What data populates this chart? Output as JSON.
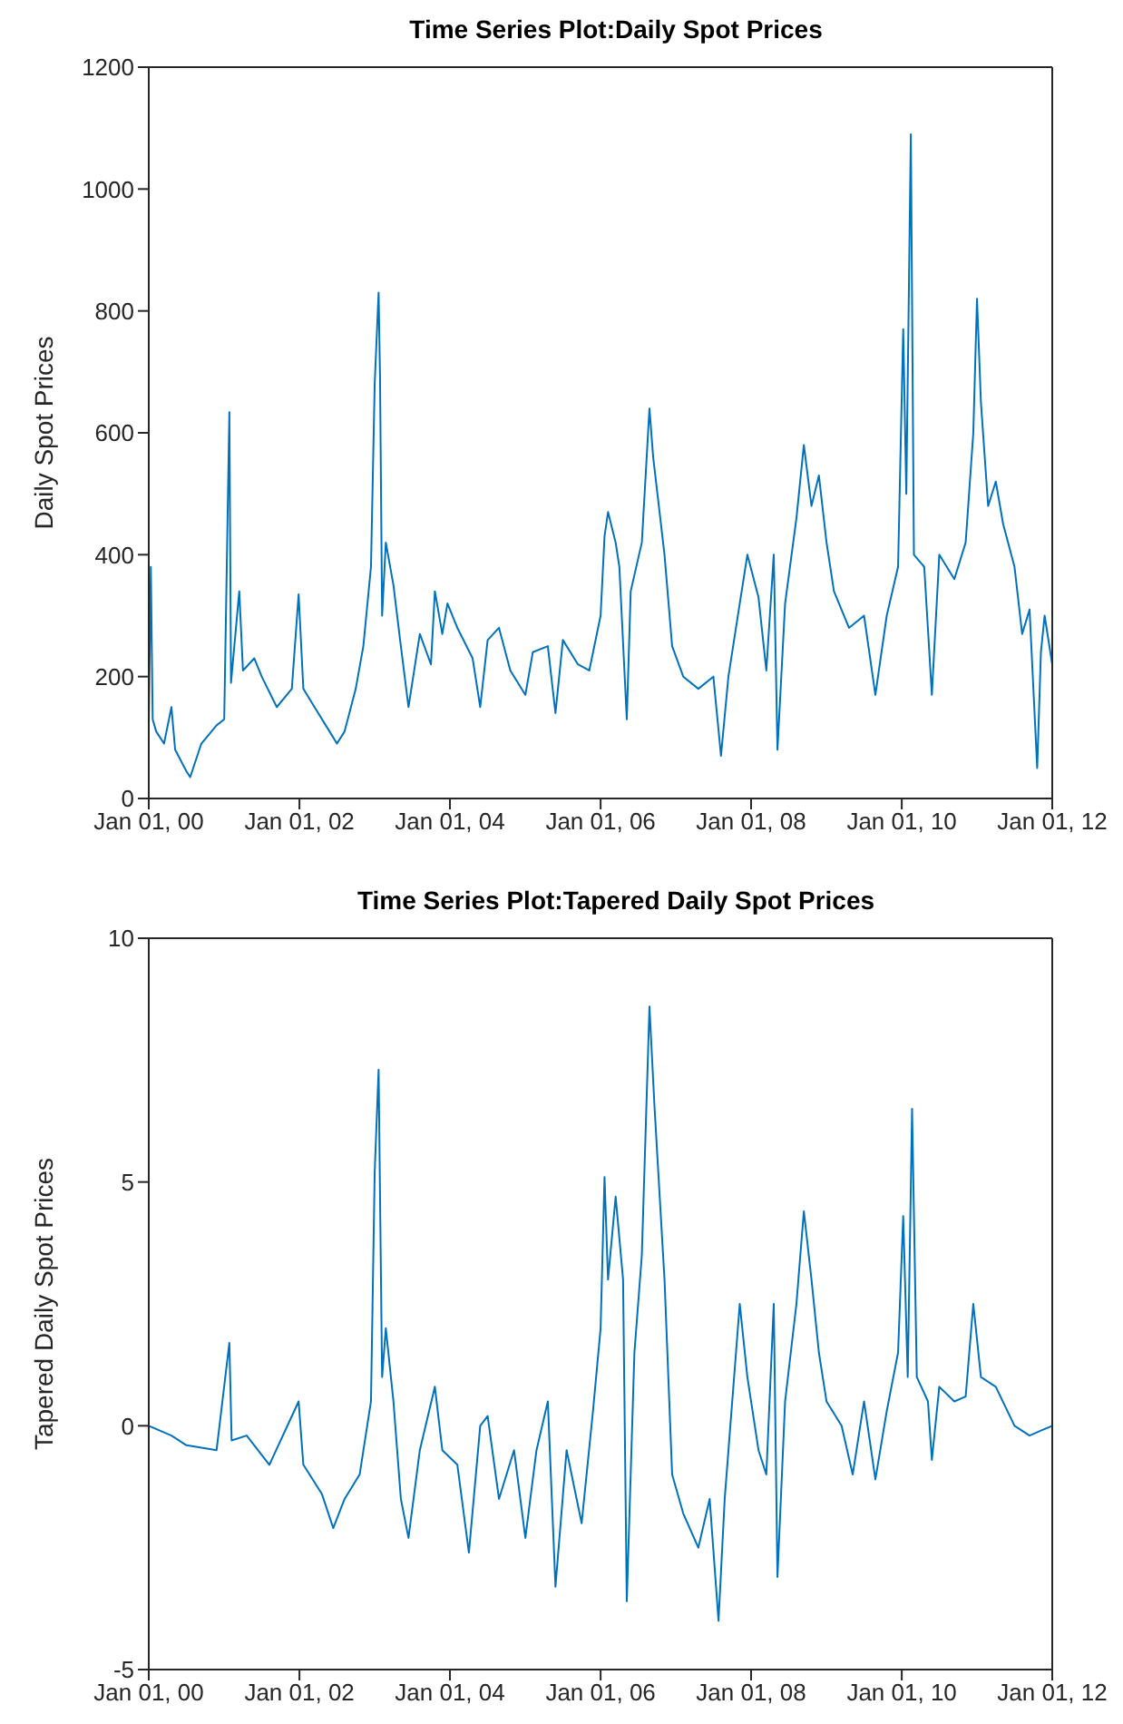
{
  "chart_data": [
    {
      "type": "line",
      "title": "Time Series Plot:Daily Spot Prices",
      "ylabel": "Daily Spot Prices",
      "legend": false,
      "grid": false,
      "marker": "none",
      "line_style": "solid",
      "xlim": [
        "2000-01-01",
        "2012-01-01"
      ],
      "xticks": [
        {
          "value": "2000-01-01",
          "label": "Jan 01, 00"
        },
        {
          "value": "2002-01-01",
          "label": "Jan 01, 02"
        },
        {
          "value": "2004-01-01",
          "label": "Jan 01, 04"
        },
        {
          "value": "2006-01-01",
          "label": "Jan 01, 06"
        },
        {
          "value": "2008-01-01",
          "label": "Jan 01, 08"
        },
        {
          "value": "2010-01-01",
          "label": "Jan 01, 10"
        },
        {
          "value": "2012-01-01",
          "label": "Jan 01, 12"
        }
      ],
      "ylim": [
        0,
        1200
      ],
      "yticks": [
        0,
        200,
        400,
        600,
        800,
        1000,
        1200
      ],
      "x": [
        "2000-01-01",
        "2000-01-11",
        "2000-01-20",
        "2000-02-06",
        "2000-03-15",
        "2000-04-20",
        "2000-05-08",
        "2000-07-01",
        "2000-07-20",
        "2000-09-12",
        "2000-11-25",
        "2001-01-01",
        "2001-01-26",
        "2001-02-03",
        "2001-03-15",
        "2001-04-02",
        "2001-05-27",
        "2001-07-02",
        "2001-09-13",
        "2001-11-25",
        "2001-12-28",
        "2002-01-20",
        "2002-03-15",
        "2002-05-27",
        "2002-07-02",
        "2002-08-08",
        "2002-10-01",
        "2002-11-07",
        "2002-12-14",
        "2003-01-01",
        "2003-01-20",
        "2003-01-27",
        "2003-02-06",
        "2003-02-24",
        "2003-04-02",
        "2003-05-08",
        "2003-06-14",
        "2003-08-08",
        "2003-10-01",
        "2003-10-20",
        "2003-11-25",
        "2003-12-20",
        "2004-02-06",
        "2004-04-20",
        "2004-05-27",
        "2004-07-02",
        "2004-08-26",
        "2004-10-20",
        "2005-01-01",
        "2005-02-06",
        "2005-04-20",
        "2005-05-27",
        "2005-07-02",
        "2005-09-13",
        "2005-11-07",
        "2006-01-01",
        "2006-01-20",
        "2006-02-06",
        "2006-03-15",
        "2006-04-02",
        "2006-05-08",
        "2006-05-27",
        "2006-07-20",
        "2006-08-26",
        "2006-09-13",
        "2006-11-07",
        "2006-12-14",
        "2007-02-06",
        "2007-04-20",
        "2007-07-02",
        "2007-08-08",
        "2007-09-13",
        "2007-11-07",
        "2007-12-14",
        "2008-02-06",
        "2008-03-15",
        "2008-04-20",
        "2008-05-08",
        "2008-06-14",
        "2008-08-08",
        "2008-09-13",
        "2008-10-20",
        "2008-11-25",
        "2009-01-01",
        "2009-02-06",
        "2009-04-20",
        "2009-07-02",
        "2009-08-26",
        "2009-10-20",
        "2009-12-14",
        "2010-01-08",
        "2010-01-23",
        "2010-02-14",
        "2010-03-01",
        "2010-04-20",
        "2010-05-27",
        "2010-07-02",
        "2010-09-13",
        "2010-11-07",
        "2010-12-14",
        "2011-01-01",
        "2011-01-20",
        "2011-02-24",
        "2011-04-02",
        "2011-05-08",
        "2011-07-02",
        "2011-08-08",
        "2011-09-13",
        "2011-10-20",
        "2011-11-07",
        "2011-11-25",
        "2012-01-01"
      ],
      "series": [
        {
          "color": "#0072bd",
          "values": [
            120,
            380,
            130,
            110,
            90,
            150,
            80,
            45,
            35,
            90,
            120,
            130,
            634,
            190,
            340,
            210,
            230,
            200,
            150,
            180,
            335,
            180,
            150,
            110,
            90,
            110,
            180,
            250,
            380,
            680,
            830,
            690,
            300,
            420,
            350,
            250,
            150,
            270,
            220,
            340,
            270,
            320,
            280,
            230,
            150,
            260,
            280,
            210,
            170,
            240,
            250,
            140,
            260,
            220,
            210,
            300,
            430,
            470,
            420,
            380,
            130,
            340,
            420,
            640,
            560,
            400,
            250,
            200,
            180,
            200,
            70,
            200,
            320,
            400,
            330,
            210,
            400,
            80,
            320,
            460,
            580,
            480,
            530,
            420,
            340,
            280,
            300,
            170,
            300,
            380,
            770,
            500,
            1090,
            400,
            380,
            170,
            400,
            360,
            420,
            600,
            820,
            650,
            480,
            520,
            450,
            380,
            270,
            310,
            50,
            240,
            300,
            220
          ]
        }
      ]
    },
    {
      "type": "line",
      "title": "Time Series Plot:Tapered Daily Spot Prices",
      "ylabel": "Tapered Daily Spot Prices",
      "legend": false,
      "grid": false,
      "marker": "none",
      "line_style": "solid",
      "xlim": [
        "2000-01-01",
        "2012-01-01"
      ],
      "xticks": [
        {
          "value": "2000-01-01",
          "label": "Jan 01, 00"
        },
        {
          "value": "2002-01-01",
          "label": "Jan 01, 02"
        },
        {
          "value": "2004-01-01",
          "label": "Jan 01, 04"
        },
        {
          "value": "2006-01-01",
          "label": "Jan 01, 06"
        },
        {
          "value": "2008-01-01",
          "label": "Jan 01, 08"
        },
        {
          "value": "2010-01-01",
          "label": "Jan 01, 10"
        },
        {
          "value": "2012-01-01",
          "label": "Jan 01, 12"
        }
      ],
      "ylim": [
        -5,
        10
      ],
      "yticks": [
        -5,
        0,
        5,
        10
      ],
      "x": [
        "2000-01-01",
        "2000-04-20",
        "2000-07-02",
        "2000-11-25",
        "2001-01-26",
        "2001-02-06",
        "2001-04-20",
        "2001-08-08",
        "2001-12-28",
        "2002-01-20",
        "2002-04-20",
        "2002-06-14",
        "2002-08-08",
        "2002-10-20",
        "2002-12-14",
        "2003-01-01",
        "2003-01-20",
        "2003-02-06",
        "2003-02-24",
        "2003-04-02",
        "2003-05-08",
        "2003-06-14",
        "2003-08-08",
        "2003-10-20",
        "2003-11-25",
        "2004-02-06",
        "2004-04-02",
        "2004-05-27",
        "2004-07-02",
        "2004-08-26",
        "2004-11-07",
        "2005-01-01",
        "2005-02-24",
        "2005-04-20",
        "2005-05-27",
        "2005-07-20",
        "2005-10-01",
        "2005-11-25",
        "2006-01-01",
        "2006-01-20",
        "2006-02-06",
        "2006-03-15",
        "2006-04-20",
        "2006-05-08",
        "2006-06-14",
        "2006-07-20",
        "2006-08-26",
        "2006-09-20",
        "2006-11-07",
        "2006-12-14",
        "2007-02-06",
        "2007-04-20",
        "2007-06-14",
        "2007-07-27",
        "2007-08-26",
        "2007-11-07",
        "2007-12-14",
        "2008-02-06",
        "2008-03-15",
        "2008-04-20",
        "2008-05-08",
        "2008-06-14",
        "2008-08-08",
        "2008-09-13",
        "2008-10-20",
        "2008-11-25",
        "2009-01-01",
        "2009-03-15",
        "2009-05-08",
        "2009-07-02",
        "2009-08-26",
        "2009-10-20",
        "2009-12-14",
        "2010-01-08",
        "2010-01-30",
        "2010-02-20",
        "2010-03-15",
        "2010-05-08",
        "2010-05-27",
        "2010-07-02",
        "2010-09-13",
        "2010-11-07",
        "2010-12-14",
        "2011-01-20",
        "2011-04-02",
        "2011-07-02",
        "2011-09-13",
        "2011-11-07",
        "2012-01-01"
      ],
      "series": [
        {
          "color": "#0072bd",
          "values": [
            0,
            -0.2,
            -0.4,
            -0.5,
            1.7,
            -0.3,
            -0.2,
            -0.8,
            0.5,
            -0.8,
            -1.4,
            -2.1,
            -1.5,
            -1.0,
            0.5,
            5.2,
            7.3,
            1.0,
            2.0,
            0.5,
            -1.5,
            -2.3,
            -0.5,
            0.8,
            -0.5,
            -0.8,
            -2.6,
            0,
            0.2,
            -1.5,
            -0.5,
            -2.3,
            -0.5,
            0.5,
            -3.3,
            -0.5,
            -2.0,
            0.3,
            2.0,
            5.1,
            3.0,
            4.7,
            3.0,
            -3.6,
            1.5,
            3.5,
            8.6,
            6.5,
            3.0,
            -1.0,
            -1.8,
            -2.5,
            -1.5,
            -4.0,
            -1.5,
            2.5,
            1.0,
            -0.5,
            -1.0,
            2.5,
            -3.1,
            0.5,
            2.5,
            4.4,
            3.0,
            1.5,
            0.5,
            0,
            -1.0,
            0.5,
            -1.1,
            0.3,
            1.5,
            4.3,
            1.0,
            6.5,
            1.0,
            0.5,
            -0.7,
            0.8,
            0.5,
            0.6,
            2.5,
            1.0,
            0.8,
            0,
            -0.2,
            -0.1,
            0
          ]
        }
      ]
    }
  ]
}
